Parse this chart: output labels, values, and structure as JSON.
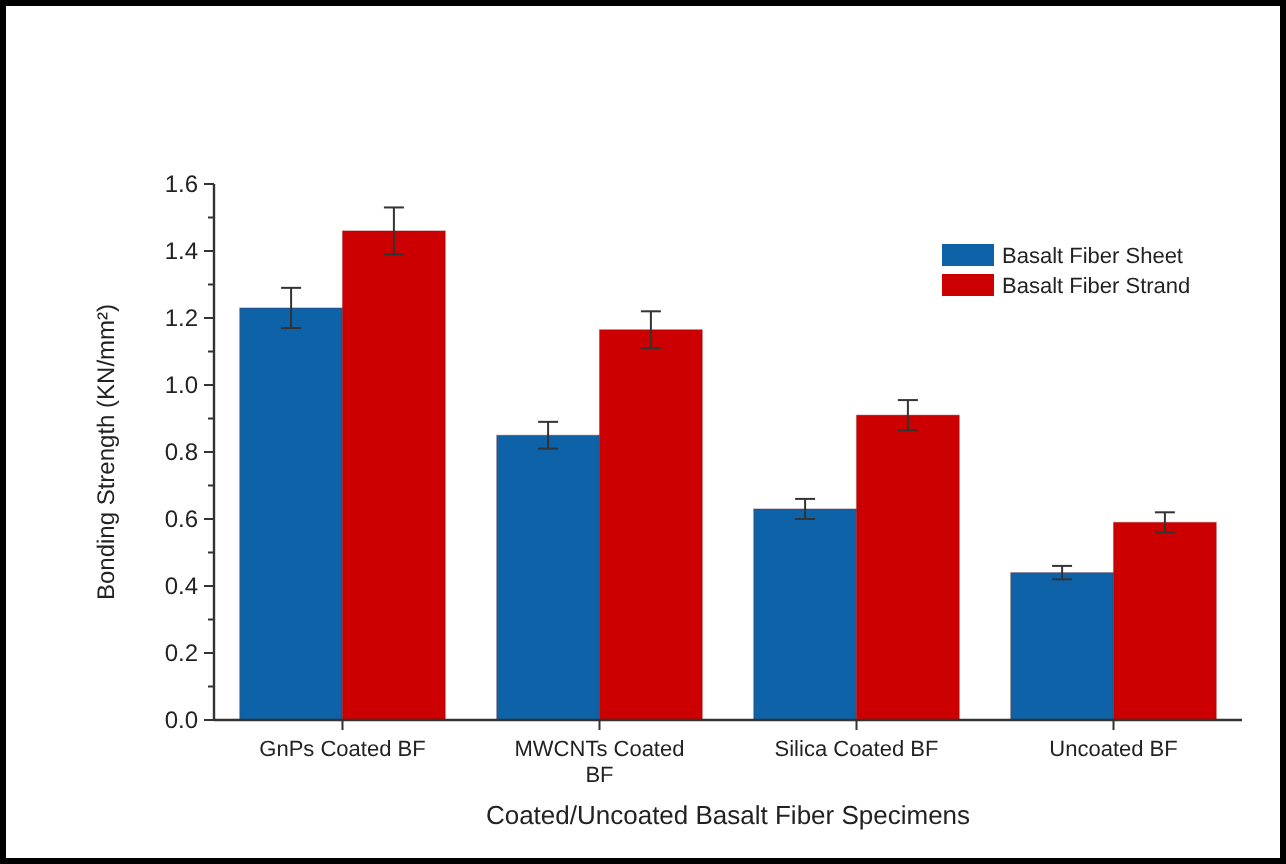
{
  "chart_data": {
    "type": "bar",
    "xlabel": "Coated/Uncoated Basalt Fiber Specimens",
    "ylabel": "Bonding Strength (KN/mm²)",
    "categories": [
      "GnPs Coated BF",
      "MWCNTs Coated BF",
      "Silica Coated BF",
      "Uncoated BF"
    ],
    "series": [
      {
        "name": "Basalt Fiber Sheet",
        "color": "#0e63a8",
        "values": [
          1.23,
          0.85,
          0.63,
          0.44
        ],
        "errors": [
          0.06,
          0.04,
          0.03,
          0.02
        ]
      },
      {
        "name": "Basalt Fiber Strand",
        "color": "#cc0000",
        "values": [
          1.46,
          1.165,
          0.91,
          0.59
        ],
        "errors": [
          0.07,
          0.055,
          0.045,
          0.03
        ]
      }
    ],
    "ylim": [
      0,
      1.6
    ],
    "yticks": [
      {
        "value": 0,
        "label": "0.0"
      },
      0.2,
      0.4,
      0.6,
      0.8,
      {
        "value": 1,
        "label": "1.0"
      },
      1.2,
      1.4,
      1.6
    ],
    "grid": false,
    "legend": "top right"
  }
}
